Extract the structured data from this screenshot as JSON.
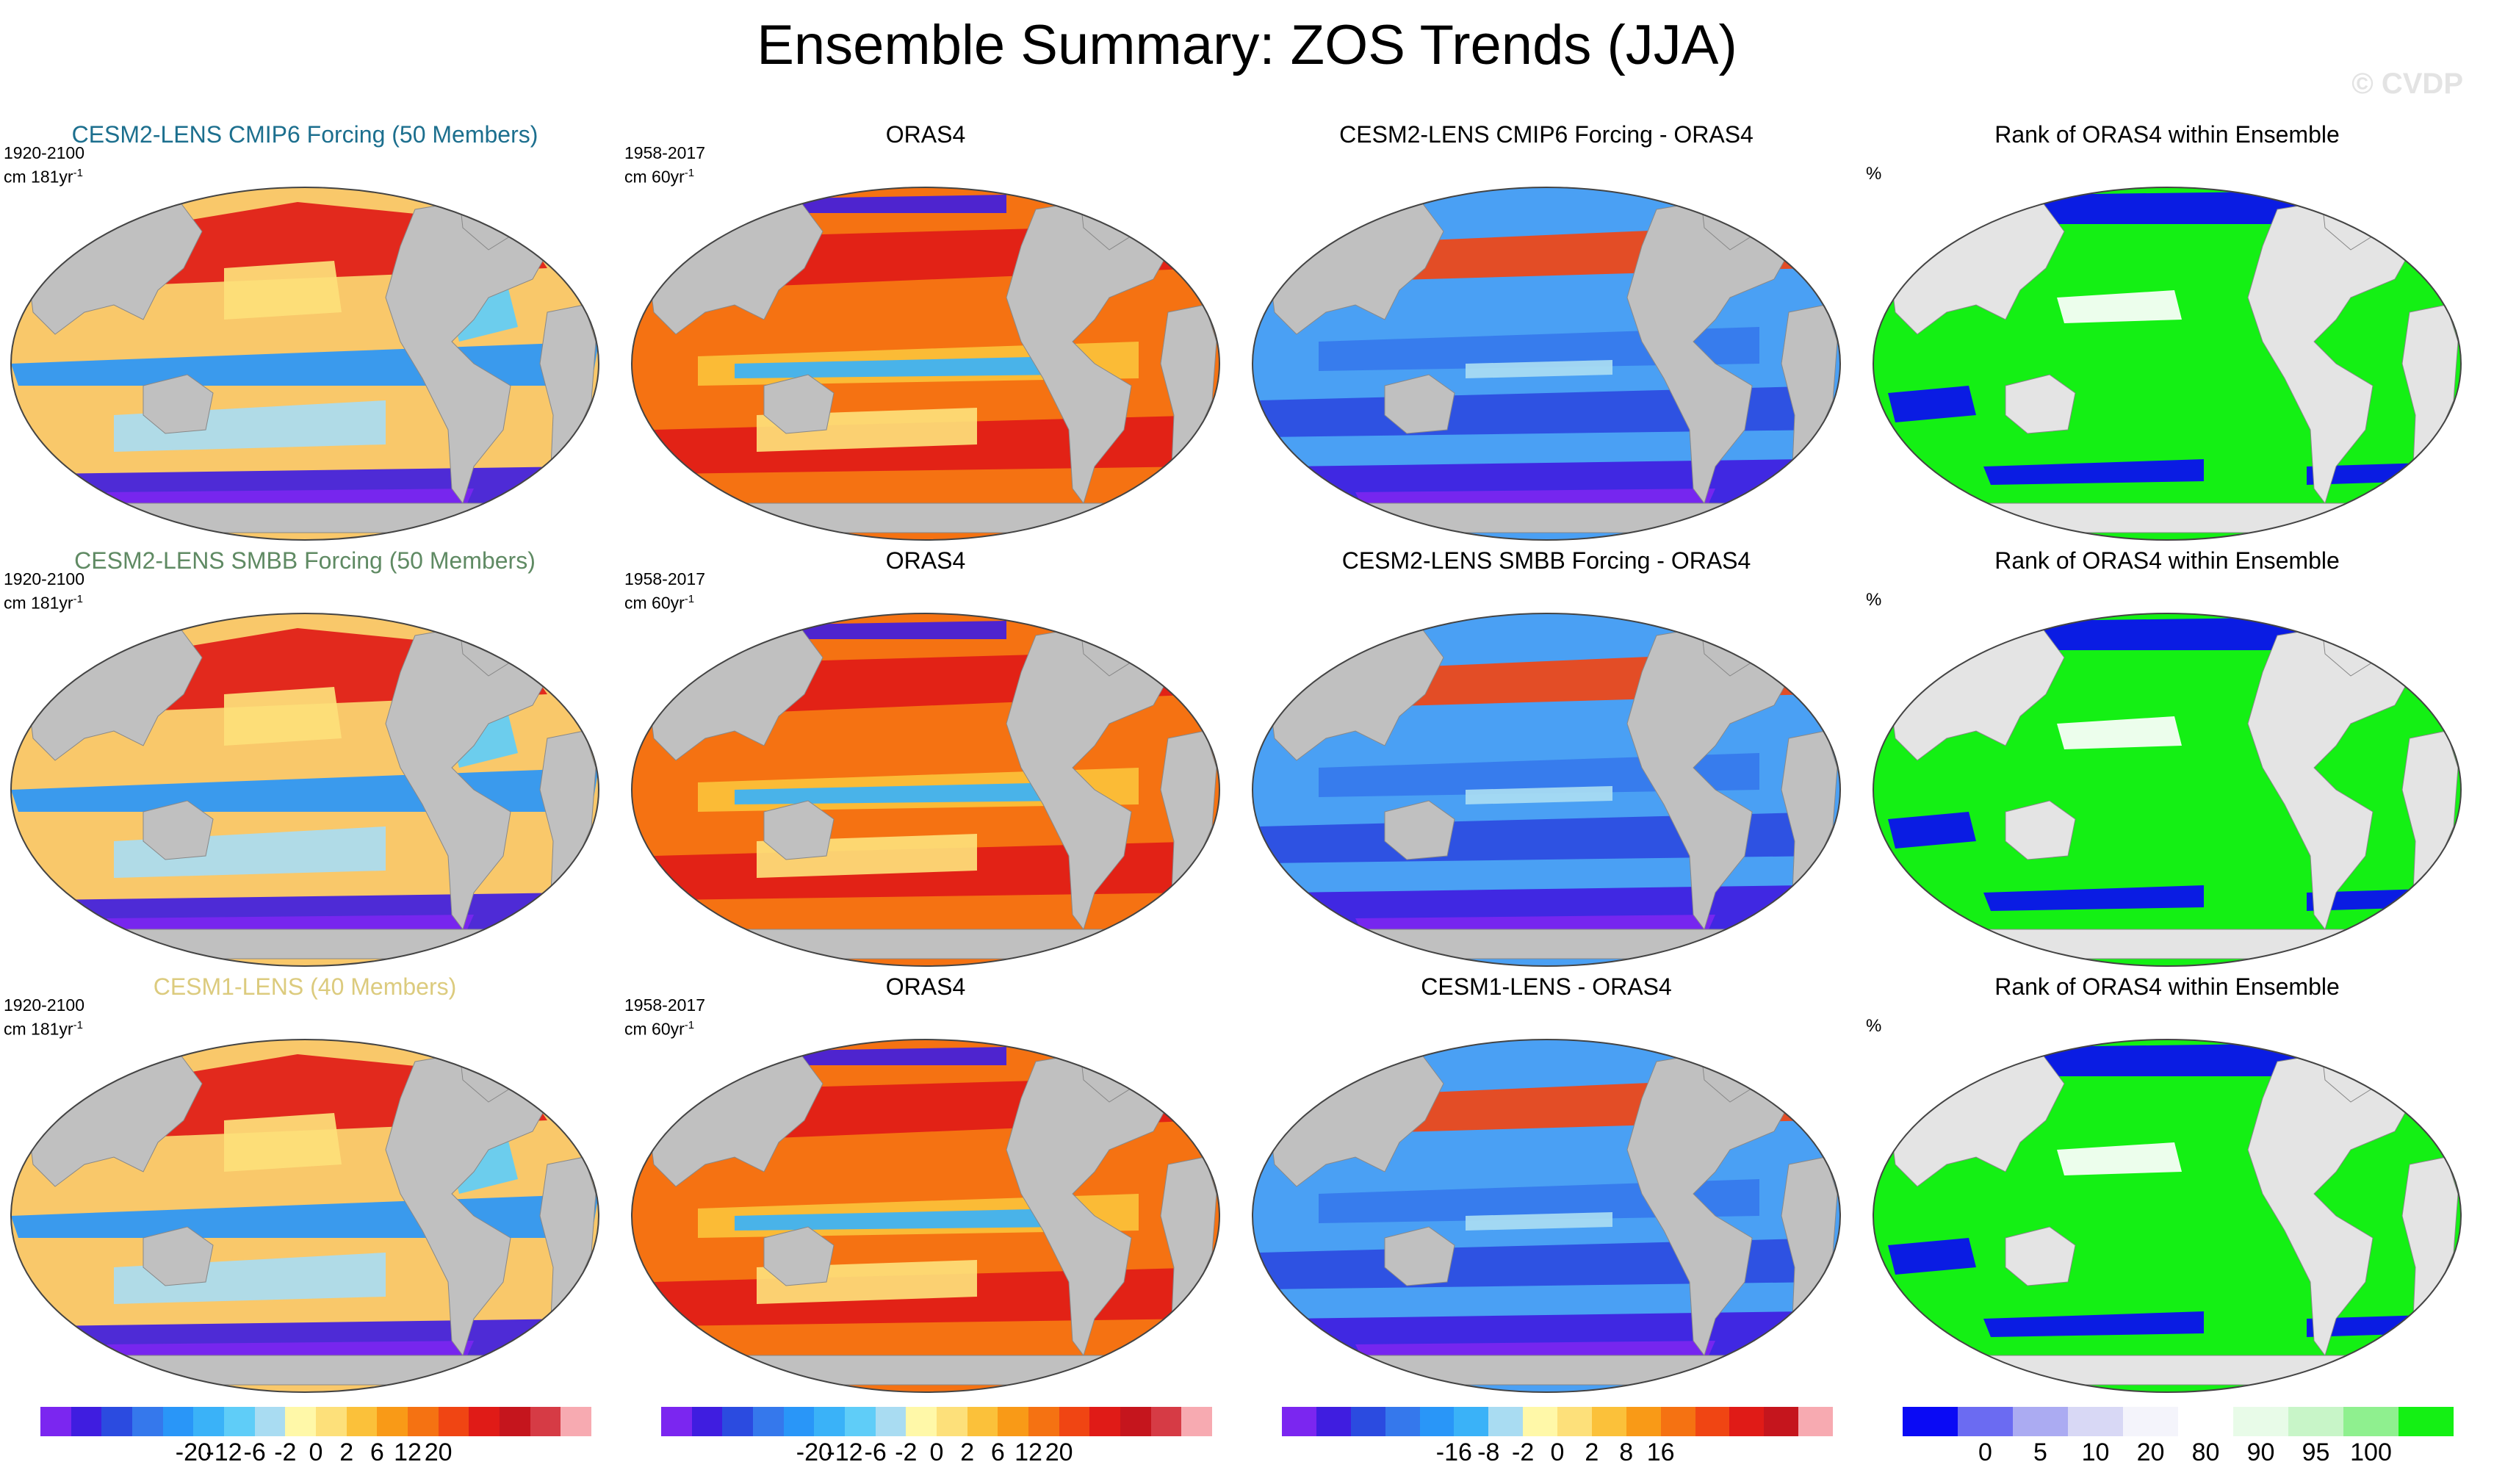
{
  "title": "Ensemble Summary: ZOS Trends (JJA)",
  "watermark": "© CVDP",
  "rows": [
    {
      "ensemble_title": "CESM2-LENS CMIP6 Forcing (50 Members)",
      "ensemble_title_color": "#1c6f8e",
      "period": "1920-2100",
      "units": "cm 181yr",
      "obs_title": "ORAS4",
      "obs_period": "1958-2017",
      "obs_units": "cm 60yr",
      "diff_title": "CESM2-LENS CMIP6 Forcing - ORAS4",
      "rank_title": "Rank of ORAS4 within Ensemble",
      "rank_unit": "%"
    },
    {
      "ensemble_title": "CESM2-LENS SMBB Forcing (50 Members)",
      "ensemble_title_color": "#5f8a63",
      "period": "1920-2100",
      "units": "cm 181yr",
      "obs_title": "ORAS4",
      "obs_period": "1958-2017",
      "obs_units": "cm 60yr",
      "diff_title": "CESM2-LENS SMBB Forcing - ORAS4",
      "rank_title": "Rank of ORAS4 within Ensemble",
      "rank_unit": "%"
    },
    {
      "ensemble_title": "CESM1-LENS (40 Members)",
      "ensemble_title_color": "#dccb7e",
      "period": "1920-2100",
      "units": "cm 181yr",
      "obs_title": "ORAS4",
      "obs_period": "1958-2017",
      "obs_units": "cm 60yr",
      "diff_title": "CESM1-LENS - ORAS4",
      "rank_title": "Rank of ORAS4 within Ensemble",
      "rank_unit": "%"
    }
  ],
  "unit_superscript": "-1",
  "colorbars": [
    {
      "colors": [
        "#7b26f0",
        "#3f1de0",
        "#2b4be0",
        "#3578ec",
        "#2996f8",
        "#3ab2f8",
        "#5fcdf8",
        "#a9dcf2",
        "#fff8a8",
        "#fde07a",
        "#fbc13a",
        "#f99a17",
        "#f57212",
        "#f04513",
        "#e01b17",
        "#c5151d",
        "#d63b45",
        "#f7aab1"
      ],
      "labels": [
        "-20",
        "-12",
        "-6",
        "-2",
        "0",
        "2",
        "6",
        "12",
        "20"
      ]
    },
    {
      "colors": [
        "#7b26f0",
        "#3f1de0",
        "#2b4be0",
        "#3578ec",
        "#2996f8",
        "#3ab2f8",
        "#5fcdf8",
        "#a9dcf2",
        "#fff8a8",
        "#fde07a",
        "#fbc13a",
        "#f99a17",
        "#f57212",
        "#f04513",
        "#e01b17",
        "#c5151d",
        "#d63b45",
        "#f7aab1"
      ],
      "labels": [
        "-20",
        "-12",
        "-6",
        "-2",
        "0",
        "2",
        "6",
        "12",
        "20"
      ]
    },
    {
      "colors": [
        "#7b26f0",
        "#3f1de0",
        "#2b4be0",
        "#3578ec",
        "#2996f8",
        "#3ab2f8",
        "#a9dcf2",
        "#fff8a8",
        "#fde07a",
        "#fbc13a",
        "#f99a17",
        "#f57212",
        "#f04513",
        "#e01b17",
        "#c5151d",
        "#f7aab1"
      ],
      "labels": [
        "-16",
        "-8",
        "-2",
        "0",
        "2",
        "8",
        "16"
      ]
    },
    {
      "colors": [
        "#0a0af5",
        "#6b6bf2",
        "#ababf2",
        "#d8d8f5",
        "#f4f4fb",
        "#ffffff",
        "#e8fbe8",
        "#c8f5c8",
        "#8ff08f",
        "#14f014"
      ],
      "labels": [
        "0",
        "5",
        "10",
        "20",
        "80",
        "90",
        "95",
        "100"
      ]
    }
  ],
  "map_colors": {
    "ocean_gray": "#c0c0c0",
    "ensemble_bg": "#f9c86a",
    "obs_bg": "#f57212",
    "diff_bg": "#4aa0f4",
    "rank_bg": "#14f014",
    "rank_land": "#e4e4e4"
  }
}
